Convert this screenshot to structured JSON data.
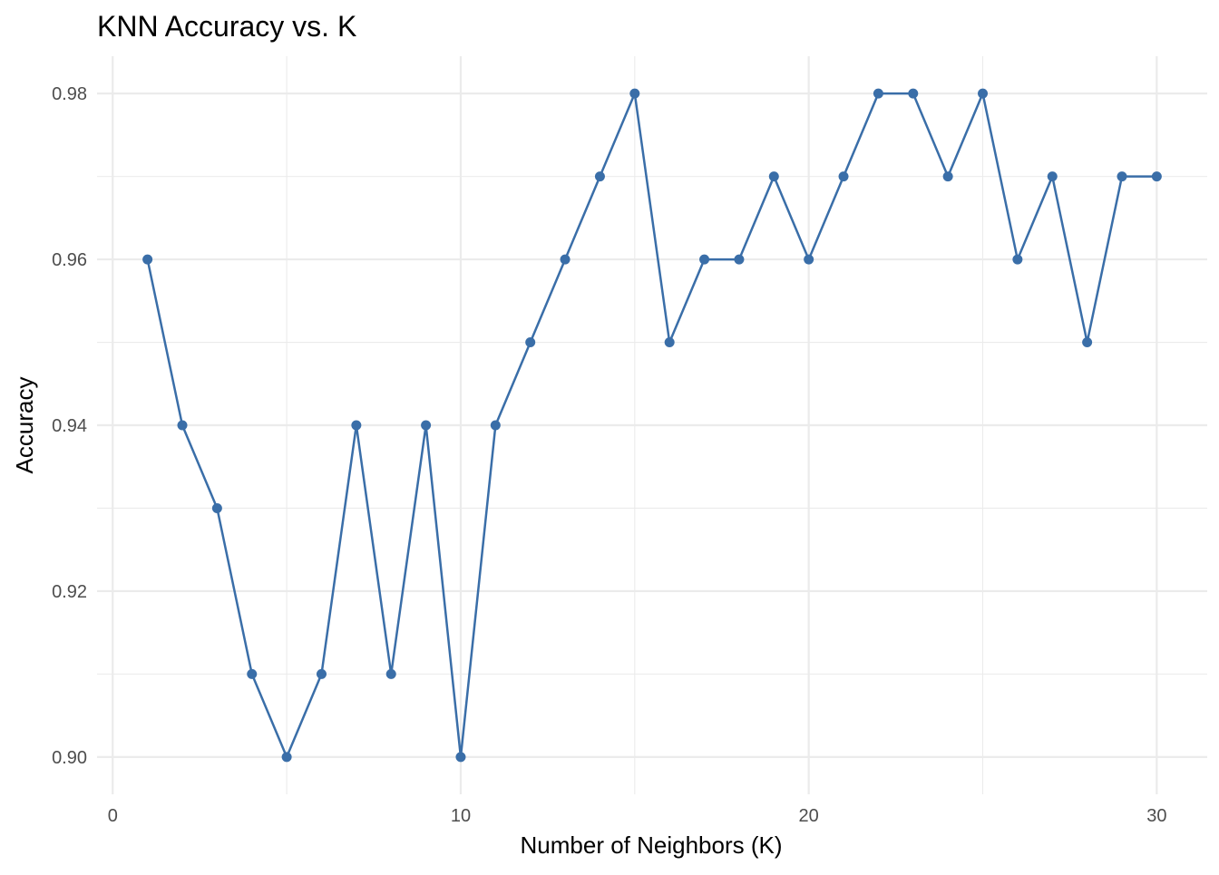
{
  "chart_data": {
    "type": "line",
    "title": "KNN Accuracy vs. K",
    "xlabel": "Number of Neighbors (K)",
    "ylabel": "Accuracy",
    "xlim": [
      -0.45,
      31.45
    ],
    "ylim": [
      0.8955,
      0.9845
    ],
    "x_major_ticks": [
      0,
      10,
      20,
      30
    ],
    "x_tick_labels": [
      "0",
      "10",
      "20",
      "30"
    ],
    "x_minor_ticks": [
      5,
      15,
      25
    ],
    "y_major_ticks": [
      0.9,
      0.92,
      0.94,
      0.96,
      0.98
    ],
    "y_tick_labels": [
      "0.90",
      "0.92",
      "0.94",
      "0.96",
      "0.98"
    ],
    "y_minor_ticks": [
      0.91,
      0.93,
      0.95,
      0.97
    ],
    "grid": true,
    "color": "#3a6ea8",
    "x": [
      1,
      2,
      3,
      4,
      5,
      6,
      7,
      8,
      9,
      10,
      11,
      12,
      13,
      14,
      15,
      16,
      17,
      18,
      19,
      20,
      21,
      22,
      23,
      24,
      25,
      26,
      27,
      28,
      29,
      30
    ],
    "y": [
      0.96,
      0.94,
      0.93,
      0.91,
      0.9,
      0.91,
      0.94,
      0.91,
      0.94,
      0.9,
      0.94,
      0.95,
      0.96,
      0.97,
      0.98,
      0.95,
      0.96,
      0.96,
      0.97,
      0.96,
      0.97,
      0.98,
      0.98,
      0.97,
      0.98,
      0.96,
      0.97,
      0.95,
      0.97,
      0.97
    ]
  }
}
